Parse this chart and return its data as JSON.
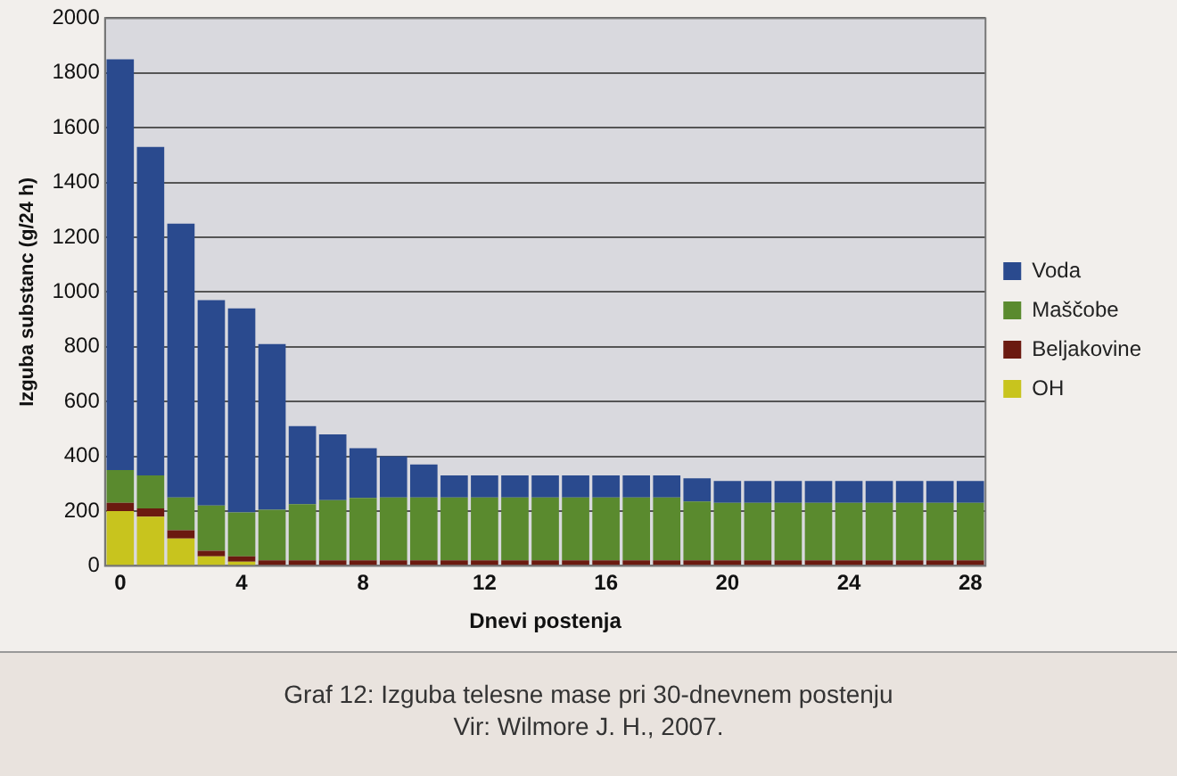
{
  "chart_data": {
    "type": "bar",
    "stacked": true,
    "xlabel": "Dnevi postenja",
    "ylabel": "Izguba substanc (g/24 h)",
    "categories": [
      "0",
      null,
      null,
      null,
      "4",
      null,
      null,
      null,
      "8",
      null,
      null,
      null,
      "12",
      null,
      null,
      null,
      "16",
      null,
      null,
      null,
      "20",
      null,
      null,
      null,
      "24",
      null,
      null,
      null,
      "28"
    ],
    "series": [
      {
        "name": "OH",
        "color": "#c8c41e",
        "values": [
          200,
          180,
          100,
          35,
          15,
          0,
          0,
          0,
          0,
          0,
          0,
          0,
          0,
          0,
          0,
          0,
          0,
          0,
          0,
          0,
          0,
          0,
          0,
          0,
          0,
          0,
          0,
          0,
          0
        ]
      },
      {
        "name": "Beljakovine",
        "color": "#6b1a10",
        "values": [
          30,
          30,
          30,
          20,
          20,
          20,
          20,
          20,
          20,
          20,
          20,
          20,
          20,
          20,
          20,
          20,
          20,
          20,
          20,
          20,
          20,
          20,
          20,
          20,
          20,
          20,
          20,
          20,
          20
        ]
      },
      {
        "name": "Maščobe",
        "color": "#5a8a2e",
        "values": [
          120,
          120,
          120,
          165,
          160,
          185,
          205,
          220,
          228,
          230,
          230,
          230,
          230,
          230,
          230,
          230,
          230,
          230,
          230,
          215,
          210,
          210,
          210,
          210,
          210,
          210,
          210,
          210,
          210
        ]
      },
      {
        "name": "Voda",
        "color": "#2a4a8e",
        "values": [
          1500,
          1200,
          1000,
          750,
          745,
          605,
          285,
          240,
          182,
          150,
          120,
          80,
          80,
          80,
          80,
          80,
          80,
          80,
          80,
          85,
          80,
          80,
          80,
          80,
          80,
          80,
          80,
          80,
          80
        ]
      }
    ],
    "ylim": [
      0,
      2000
    ],
    "yticks": [
      0,
      200,
      400,
      600,
      800,
      1000,
      1200,
      1400,
      1600,
      1800,
      2000
    ],
    "grid": "y",
    "legend": "right",
    "annotations": [
      "Graf 12: Izguba telesne mase pri 30-dnevnem postenju",
      "Vir: Wilmore J. H., 2007."
    ]
  }
}
